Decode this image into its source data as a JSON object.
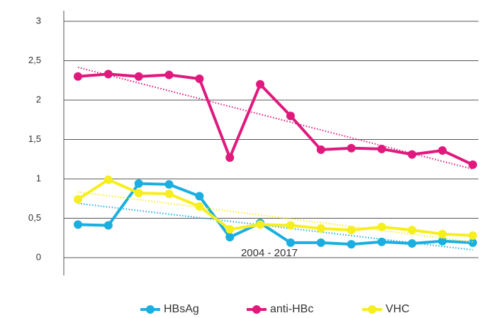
{
  "chart_data": {
    "type": "line",
    "x_label": "2004 - 2017",
    "categories": [
      null,
      null,
      null,
      null,
      null,
      null,
      null,
      null,
      null,
      null,
      null,
      null,
      null,
      null
    ],
    "series": [
      {
        "name": "HBsAg",
        "color": "#1aafe0",
        "values": [
          0.42,
          0.41,
          0.94,
          0.93,
          0.78,
          0.26,
          0.44,
          0.19,
          0.19,
          0.17,
          0.2,
          0.18,
          0.21,
          0.19
        ]
      },
      {
        "name": "anti-HBc",
        "color": "#e0197d",
        "values": [
          2.3,
          2.33,
          2.3,
          2.32,
          2.27,
          1.27,
          2.2,
          1.8,
          1.37,
          1.39,
          1.38,
          1.31,
          1.36,
          1.18
        ]
      },
      {
        "name": "VHC",
        "color": "#f7ee1e",
        "values": [
          0.74,
          0.99,
          0.82,
          0.81,
          0.65,
          0.36,
          0.42,
          0.41,
          0.37,
          0.35,
          0.39,
          0.35,
          0.3,
          0.28
        ]
      }
    ],
    "ylim": [
      0,
      3
    ],
    "yticks": [
      0,
      {
        "value": 0.5,
        "label": "0,5"
      },
      1,
      {
        "value": 1.5,
        "label": "1,5"
      },
      2,
      {
        "value": 2.5,
        "label": "2,5"
      },
      3
    ],
    "grid": true,
    "trendline": true,
    "legend": "bottom"
  }
}
